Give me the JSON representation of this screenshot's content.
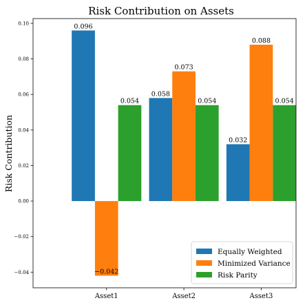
{
  "chart_data": {
    "type": "bar",
    "title": "Risk Contribution on Assets",
    "xlabel": "",
    "ylabel": "Risk Contribution",
    "categories": [
      "Asset1",
      "Asset2",
      "Asset3"
    ],
    "series": [
      {
        "name": "Equally Weighted",
        "values": [
          0.096,
          0.058,
          0.032
        ],
        "labels": [
          "0.096",
          "0.058",
          "0.032"
        ],
        "color": "#1f77b4"
      },
      {
        "name": "Minimized Variance",
        "values": [
          -0.042,
          0.073,
          0.088
        ],
        "labels": [
          "−0.042",
          "0.073",
          "0.088"
        ],
        "color": "#ff7f0e"
      },
      {
        "name": "Risk Parity",
        "values": [
          0.054,
          0.054,
          0.054
        ],
        "labels": [
          "0.054",
          "0.054",
          "0.054"
        ],
        "color": "#2ca02c"
      }
    ],
    "ylim": [
      -0.0488,
      0.1027
    ],
    "yticks": [
      -0.04,
      -0.02,
      0.0,
      0.02,
      0.04,
      0.06,
      0.08,
      0.1
    ],
    "ytick_labels": [
      "−0.04",
      "−0.02",
      "0.00",
      "0.02",
      "0.04",
      "0.06",
      "0.08",
      "0.10"
    ],
    "grid": false,
    "legend_position": "lower-right"
  }
}
